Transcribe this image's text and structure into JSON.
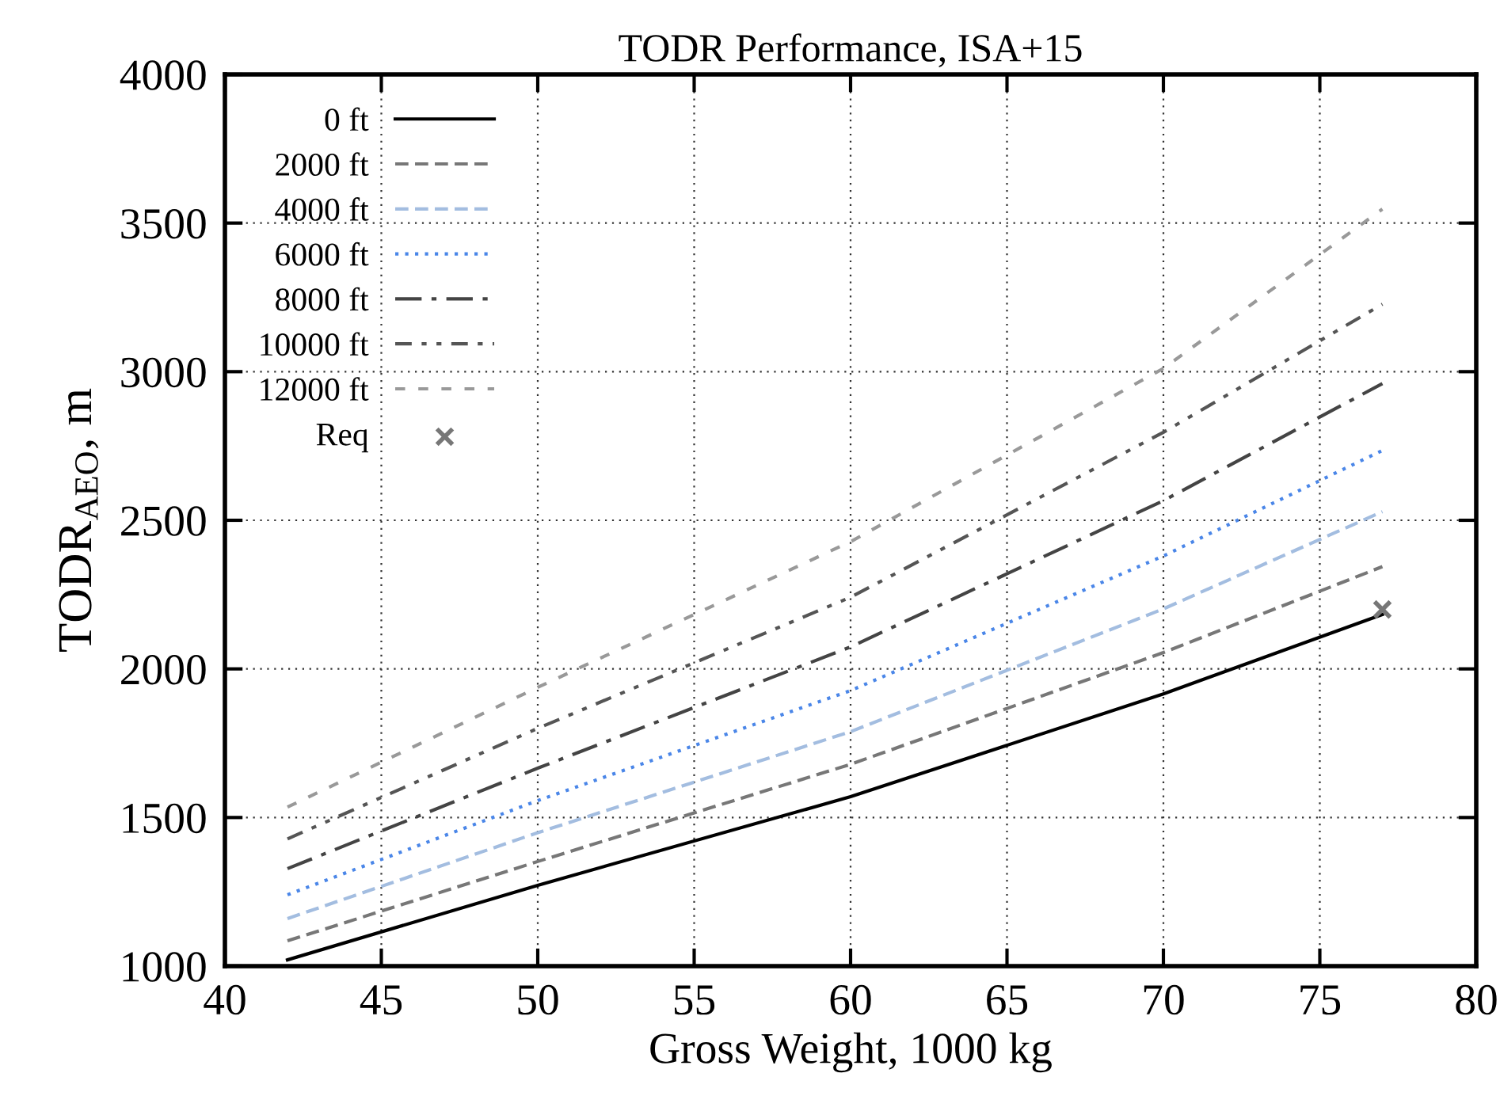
{
  "chart_data": {
    "type": "line",
    "title": "TODR Performance, ISA+15",
    "xlabel": "Gross Weight, 1000 kg",
    "ylabel": "TODR$_{AEO}$, m",
    "xlim": [
      40,
      80
    ],
    "xticks": [
      40,
      45,
      50,
      55,
      60,
      65,
      70,
      75,
      80
    ],
    "ylim": [
      1000,
      4000
    ],
    "yticks": [
      1000,
      1500,
      2000,
      2500,
      3000,
      3500,
      4000
    ],
    "grid": true,
    "legend": "top left",
    "marker": "none",
    "series": [
      {
        "name": "0 ft",
        "color": "#000000",
        "line_style": "solid",
        "x": [
          42,
          50,
          60,
          70,
          77
        ],
        "values": [
          1021,
          1272,
          1570,
          1916,
          2183
        ]
      },
      {
        "name": "2000 ft",
        "color": "#777777",
        "line_style": "dashed",
        "x": [
          42,
          50,
          60,
          70,
          77
        ],
        "values": [
          1085,
          1352,
          1679,
          2055,
          2344
        ]
      },
      {
        "name": "4000 ft",
        "color": "#a3bde0",
        "line_style": "dashed",
        "x": [
          42,
          50,
          60,
          70,
          77
        ],
        "values": [
          1160,
          1449,
          1789,
          2202,
          2529
        ]
      },
      {
        "name": "6000 ft",
        "color": "#4a86e8",
        "line_style": "dotted",
        "x": [
          42,
          50,
          60,
          70,
          77
        ],
        "values": [
          1240,
          1557,
          1927,
          2380,
          2735
        ]
      },
      {
        "name": "8000 ft",
        "color": "#444444",
        "line_style": "dashdot",
        "x": [
          42,
          50,
          60,
          70,
          77
        ],
        "values": [
          1328,
          1666,
          2074,
          2566,
          2960
        ]
      },
      {
        "name": "10000 ft",
        "color": "#555555",
        "line_style": "dashdotdot",
        "x": [
          42,
          50,
          60,
          70,
          77
        ],
        "values": [
          1428,
          1800,
          2241,
          2796,
          3227
        ]
      },
      {
        "name": "12000 ft",
        "color": "#999999",
        "line_style": "shortdash",
        "x": [
          42,
          50,
          60,
          70,
          77
        ],
        "values": [
          1535,
          1938,
          2428,
          3011,
          3547
        ]
      },
      {
        "name": "Req",
        "type": "scatter",
        "marker": "cross",
        "color": "#777777",
        "x": [
          77
        ],
        "values": [
          2200
        ]
      }
    ]
  }
}
